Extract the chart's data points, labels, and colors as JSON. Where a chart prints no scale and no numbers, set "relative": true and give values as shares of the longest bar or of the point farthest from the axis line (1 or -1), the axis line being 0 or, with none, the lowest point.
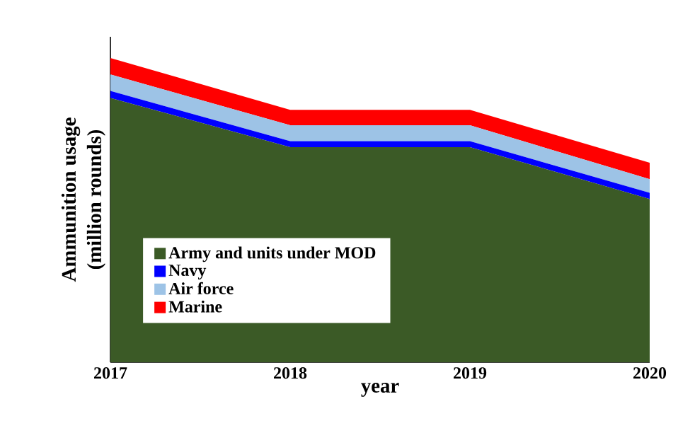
{
  "chart_data": {
    "type": "area",
    "stacked": true,
    "relative": true,
    "xlabel": "year",
    "ylabel": "Ammunition usage\n(million rounds)",
    "x": [
      2017,
      2018,
      2019,
      2020
    ],
    "xlim": [
      2017,
      2020
    ],
    "xticks": [
      2017,
      2018,
      2019,
      2020
    ],
    "legend": "left",
    "series": [
      {
        "name": "Army and units under MOD",
        "color": "#3b5a26",
        "values": [
          0.869,
          0.707,
          0.707,
          0.537
        ]
      },
      {
        "name": "Navy",
        "color": "#0000ff",
        "values": [
          0.023,
          0.02,
          0.02,
          0.02
        ]
      },
      {
        "name": "Air force",
        "color": "#9dc3e6",
        "values": [
          0.054,
          0.052,
          0.052,
          0.045
        ]
      },
      {
        "name": "Marine",
        "color": "#ff0000",
        "values": [
          0.054,
          0.051,
          0.051,
          0.054
        ]
      }
    ]
  }
}
